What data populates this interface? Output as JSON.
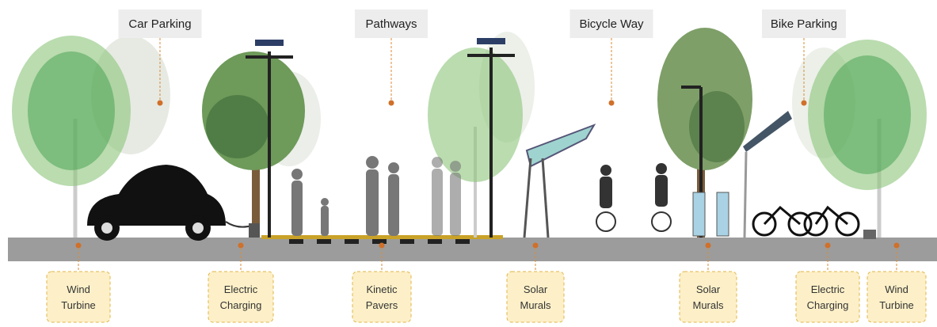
{
  "top_labels": [
    "Car Parking",
    "Pathways",
    "Bicycle Way",
    "Bike Parking"
  ],
  "bottom_labels": [
    {
      "lines": [
        "Wind",
        "Turbine"
      ]
    },
    {
      "lines": [
        "Electric",
        "Charging"
      ]
    },
    {
      "lines": [
        "Kinetic",
        "Pavers"
      ]
    },
    {
      "lines": [
        "Solar",
        "Murals"
      ]
    },
    {
      "lines": [
        "Solar",
        "Murals"
      ]
    },
    {
      "lines": [
        "Electric",
        "Charging"
      ]
    },
    {
      "lines": [
        "Wind",
        "Turbine"
      ]
    }
  ]
}
